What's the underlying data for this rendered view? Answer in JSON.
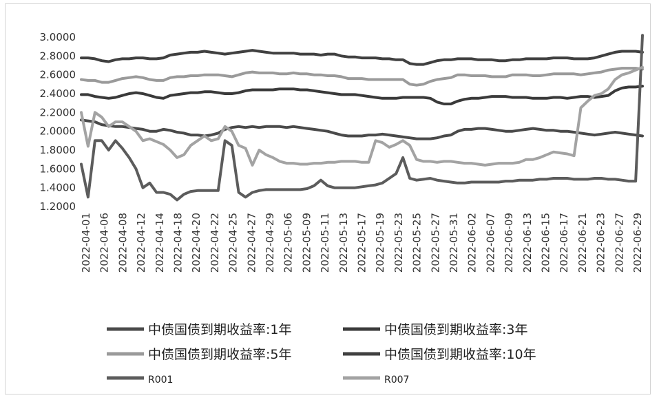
{
  "chart_data": {
    "type": "line",
    "title": "",
    "xlabel": "",
    "ylabel": "",
    "ylim": [
      1.2,
      3.0
    ],
    "yticks": [
      "1.2000",
      "1.4000",
      "1.6000",
      "1.8000",
      "2.0000",
      "2.2000",
      "2.4000",
      "2.6000",
      "2.8000",
      "3.0000"
    ],
    "xticks": [
      "2022-04-01",
      "2022-04-06",
      "2022-04-08",
      "2022-04-12",
      "2022-04-14",
      "2022-04-18",
      "2022-04-20",
      "2022-04-22",
      "2022-04-25",
      "2022-04-27",
      "2022-04-29",
      "2022-05-06",
      "2022-05-09",
      "2022-05-11",
      "2022-05-13",
      "2022-05-17",
      "2022-05-19",
      "2022-05-23",
      "2022-05-25",
      "2022-05-27",
      "2022-05-31",
      "2022-06-02",
      "2022-06-07",
      "2022-06-09",
      "2022-06-13",
      "2022-06-15",
      "2022-06-17",
      "2022-06-21",
      "2022-06-23",
      "2022-06-27",
      "2022-06-29"
    ],
    "grid": false,
    "legend_position": "bottom",
    "series": [
      {
        "name": "中债国债到期收益率:1年",
        "color": "#4a4a4a",
        "width": 4,
        "thin_label": false,
        "values": [
          2.12,
          2.11,
          2.1,
          2.07,
          2.06,
          2.05,
          2.05,
          2.04,
          2.03,
          2.02,
          2.0,
          2.0,
          2.02,
          2.01,
          1.99,
          1.98,
          1.96,
          1.96,
          1.95,
          1.96,
          1.98,
          2.02,
          2.04,
          2.05,
          2.04,
          2.05,
          2.04,
          2.05,
          2.05,
          2.05,
          2.04,
          2.05,
          2.04,
          2.03,
          2.02,
          2.01,
          2.0,
          1.98,
          1.96,
          1.95,
          1.95,
          1.95,
          1.96,
          1.96,
          1.97,
          1.96,
          1.95,
          1.94,
          1.93,
          1.92,
          1.92,
          1.92,
          1.93,
          1.95,
          1.96,
          2.0,
          2.02,
          2.02,
          2.03,
          2.03,
          2.02,
          2.01,
          2.0,
          2.0,
          2.01,
          2.02,
          2.03,
          2.02,
          2.01,
          2.01,
          2.0,
          2.0,
          1.99,
          1.98,
          1.97,
          1.96,
          1.97,
          1.98,
          1.99,
          1.98,
          1.97,
          1.96,
          1.95
        ]
      },
      {
        "name": "中债国债到期收益率:3年",
        "color": "#3a3a3a",
        "width": 4,
        "thin_label": false,
        "values": [
          2.39,
          2.39,
          2.37,
          2.36,
          2.35,
          2.36,
          2.38,
          2.4,
          2.41,
          2.4,
          2.38,
          2.36,
          2.35,
          2.38,
          2.39,
          2.4,
          2.41,
          2.41,
          2.42,
          2.42,
          2.41,
          2.4,
          2.4,
          2.41,
          2.43,
          2.44,
          2.44,
          2.44,
          2.44,
          2.45,
          2.45,
          2.45,
          2.44,
          2.44,
          2.43,
          2.42,
          2.41,
          2.4,
          2.39,
          2.39,
          2.39,
          2.38,
          2.37,
          2.36,
          2.35,
          2.35,
          2.35,
          2.36,
          2.36,
          2.36,
          2.36,
          2.35,
          2.31,
          2.29,
          2.29,
          2.32,
          2.34,
          2.35,
          2.35,
          2.36,
          2.37,
          2.37,
          2.37,
          2.36,
          2.36,
          2.36,
          2.35,
          2.35,
          2.35,
          2.36,
          2.36,
          2.35,
          2.36,
          2.37,
          2.37,
          2.36,
          2.37,
          2.38,
          2.43,
          2.46,
          2.47,
          2.47,
          2.48
        ]
      },
      {
        "name": "中债国债到期收益率:5年",
        "color": "#9a9a9a",
        "width": 4,
        "thin_label": false,
        "values": [
          2.55,
          2.54,
          2.54,
          2.52,
          2.52,
          2.54,
          2.56,
          2.57,
          2.58,
          2.57,
          2.55,
          2.54,
          2.54,
          2.57,
          2.58,
          2.58,
          2.59,
          2.59,
          2.6,
          2.6,
          2.6,
          2.59,
          2.58,
          2.6,
          2.62,
          2.63,
          2.62,
          2.62,
          2.62,
          2.61,
          2.61,
          2.62,
          2.61,
          2.61,
          2.6,
          2.6,
          2.59,
          2.59,
          2.58,
          2.56,
          2.56,
          2.56,
          2.55,
          2.55,
          2.55,
          2.55,
          2.55,
          2.55,
          2.5,
          2.49,
          2.5,
          2.53,
          2.55,
          2.56,
          2.57,
          2.6,
          2.6,
          2.59,
          2.59,
          2.59,
          2.58,
          2.58,
          2.58,
          2.6,
          2.6,
          2.6,
          2.59,
          2.59,
          2.6,
          2.61,
          2.61,
          2.61,
          2.61,
          2.6,
          2.61,
          2.62,
          2.63,
          2.65,
          2.66,
          2.67,
          2.67,
          2.67,
          2.66
        ]
      },
      {
        "name": "中债国债到期收益率:10年",
        "color": "#404040",
        "width": 4,
        "thin_label": false,
        "values": [
          2.78,
          2.78,
          2.77,
          2.75,
          2.74,
          2.76,
          2.77,
          2.77,
          2.78,
          2.78,
          2.77,
          2.77,
          2.78,
          2.81,
          2.82,
          2.83,
          2.84,
          2.84,
          2.85,
          2.84,
          2.83,
          2.82,
          2.83,
          2.84,
          2.85,
          2.86,
          2.85,
          2.84,
          2.83,
          2.83,
          2.83,
          2.83,
          2.82,
          2.82,
          2.82,
          2.81,
          2.82,
          2.82,
          2.8,
          2.79,
          2.79,
          2.78,
          2.78,
          2.78,
          2.77,
          2.77,
          2.76,
          2.76,
          2.72,
          2.71,
          2.71,
          2.73,
          2.75,
          2.76,
          2.76,
          2.77,
          2.77,
          2.77,
          2.76,
          2.76,
          2.76,
          2.75,
          2.75,
          2.76,
          2.76,
          2.77,
          2.77,
          2.77,
          2.77,
          2.78,
          2.78,
          2.78,
          2.77,
          2.77,
          2.77,
          2.78,
          2.8,
          2.82,
          2.84,
          2.85,
          2.85,
          2.85,
          2.84
        ]
      },
      {
        "name": "R001",
        "color": "#5c5c5c",
        "width": 4,
        "thin_label": true,
        "values": [
          1.65,
          1.3,
          1.9,
          1.9,
          1.8,
          1.9,
          1.82,
          1.72,
          1.6,
          1.4,
          1.45,
          1.35,
          1.35,
          1.33,
          1.27,
          1.33,
          1.36,
          1.37,
          1.37,
          1.37,
          1.37,
          1.9,
          1.85,
          1.35,
          1.3,
          1.35,
          1.37,
          1.38,
          1.38,
          1.38,
          1.38,
          1.38,
          1.38,
          1.39,
          1.42,
          1.48,
          1.42,
          1.4,
          1.4,
          1.4,
          1.4,
          1.41,
          1.42,
          1.43,
          1.45,
          1.5,
          1.55,
          1.72,
          1.5,
          1.48,
          1.49,
          1.5,
          1.48,
          1.47,
          1.46,
          1.45,
          1.45,
          1.46,
          1.46,
          1.46,
          1.46,
          1.46,
          1.47,
          1.47,
          1.48,
          1.48,
          1.48,
          1.49,
          1.49,
          1.5,
          1.5,
          1.5,
          1.49,
          1.49,
          1.49,
          1.5,
          1.5,
          1.49,
          1.49,
          1.48,
          1.47,
          1.47,
          3.02
        ]
      },
      {
        "name": "R007",
        "color": "#a3a3a3",
        "width": 4,
        "thin_label": true,
        "values": [
          2.2,
          1.84,
          2.2,
          2.15,
          2.05,
          2.1,
          2.1,
          2.05,
          2.0,
          1.9,
          1.92,
          1.89,
          1.86,
          1.8,
          1.72,
          1.75,
          1.85,
          1.9,
          1.95,
          1.9,
          1.92,
          2.05,
          2.0,
          1.85,
          1.82,
          1.64,
          1.8,
          1.75,
          1.72,
          1.68,
          1.66,
          1.66,
          1.65,
          1.65,
          1.66,
          1.66,
          1.67,
          1.67,
          1.68,
          1.68,
          1.68,
          1.67,
          1.67,
          1.9,
          1.88,
          1.83,
          1.86,
          1.9,
          1.85,
          1.7,
          1.68,
          1.68,
          1.67,
          1.68,
          1.68,
          1.67,
          1.66,
          1.66,
          1.65,
          1.64,
          1.65,
          1.66,
          1.66,
          1.66,
          1.67,
          1.7,
          1.7,
          1.72,
          1.75,
          1.78,
          1.77,
          1.76,
          1.74,
          2.25,
          2.32,
          2.38,
          2.4,
          2.45,
          2.55,
          2.6,
          2.62,
          2.65,
          2.68
        ]
      }
    ]
  }
}
